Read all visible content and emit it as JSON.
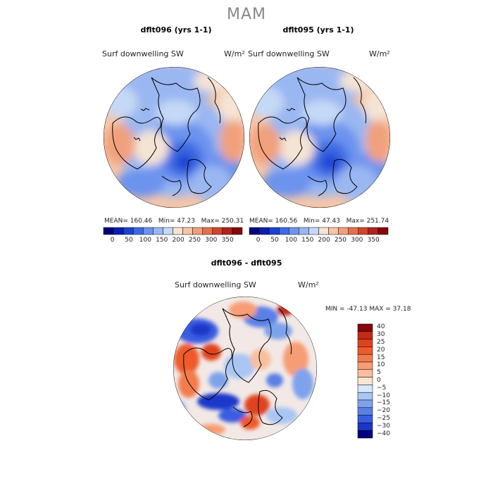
{
  "page": {
    "title": "MAM"
  },
  "panels": [
    {
      "title": "dflt096 (yrs 1-1)",
      "variable": "Surf downwelling SW",
      "unit": "W/m²",
      "stats": {
        "mean": "160.46",
        "min": "47.23",
        "max": "250.31"
      },
      "colorbar_ticks": [
        "0",
        "50",
        "100",
        "150",
        "200",
        "250",
        "300",
        "350"
      ]
    },
    {
      "title": "dflt095 (yrs 1-1)",
      "variable": "Surf downwelling SW",
      "unit": "W/m²",
      "stats": {
        "mean": "160.56",
        "min": "47.43",
        "max": "251.74"
      },
      "colorbar_ticks": [
        "0",
        "50",
        "100",
        "150",
        "200",
        "250",
        "300",
        "350"
      ]
    }
  ],
  "diff": {
    "title": "dflt096 - dflt095",
    "variable": "Surf downwelling SW",
    "unit": "W/m²",
    "min_label": "MIN = ",
    "min": "-47.13",
    "max_label": "MAX = ",
    "max": "37.18",
    "legend_ticks": [
      "40",
      "30",
      "25",
      "20",
      "15",
      "10",
      "5",
      "0",
      "−5",
      "−10",
      "−15",
      "−20",
      "−25",
      "−30",
      "−40"
    ]
  },
  "colors": {
    "abs_scale": [
      "#00007f",
      "#0a1fb0",
      "#1a43d4",
      "#3c6ae3",
      "#6c93ee",
      "#9ab7f2",
      "#c5d9f7",
      "#f5e4d4",
      "#f6c5a8",
      "#f1a07c",
      "#e6704d",
      "#d2442b",
      "#b1221a",
      "#85080c"
    ],
    "diff_scale": [
      "#85080c",
      "#c42a17",
      "#e0421e",
      "#ee5a2c",
      "#f37c4e",
      "#f69d74",
      "#f8bf9e",
      "#fae4d3",
      "#d6e6fb",
      "#a9c6f3",
      "#7ea3ec",
      "#5a80e6",
      "#3a5de0",
      "#1a37c9",
      "#00007f"
    ]
  }
}
